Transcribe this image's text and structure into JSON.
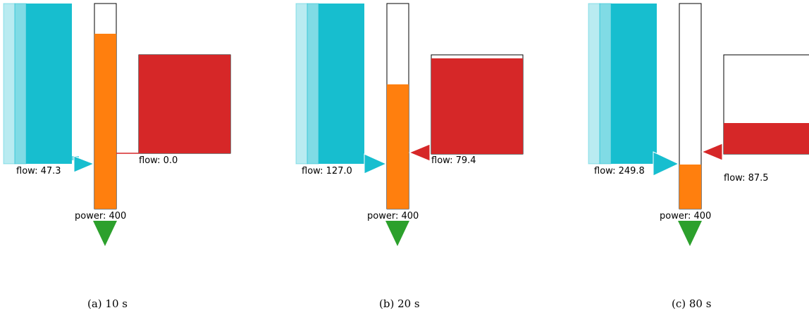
{
  "panels": [
    {
      "inflow_label": "flow: 47.3",
      "outflow_label": "flow: 0.0",
      "power_label": "power: 400",
      "caption": "(a) 10 s",
      "tank_level": 0.85,
      "reservoir_level": 1.0
    },
    {
      "inflow_label": "flow: 127.0",
      "outflow_label": "flow: 79.4",
      "power_label": "power: 400",
      "caption": "(b) 20 s",
      "tank_level": 0.55,
      "reservoir_level": 0.97
    },
    {
      "inflow_label": "flow: 249.8",
      "outflow_label": "flow: 87.5",
      "power_label": "power: 400",
      "caption": "(c) 80 s",
      "tank_level": 0.25,
      "reservoir_level": 0.3
    }
  ],
  "colors": {
    "inflow": "#17becf",
    "tank": "#ff7f0e",
    "outflow": "#d62728",
    "power": "#2ca02c"
  }
}
